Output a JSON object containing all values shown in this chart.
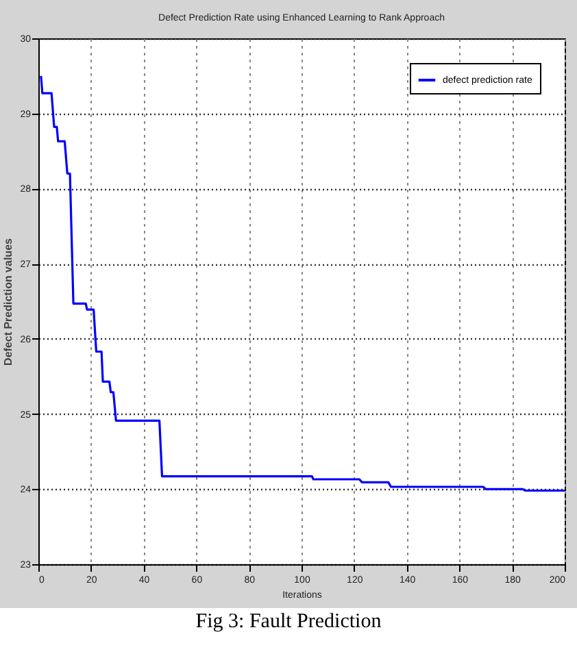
{
  "chart_data": {
    "type": "line",
    "title": "Defect Prediction Rate using Enhanced Learning to Rank Approach",
    "xlabel": "Iterations",
    "ylabel": "Defect Prediction values",
    "annotations": [
      "Fig 3: Fault Prediction"
    ],
    "x": [
      1,
      1.5,
      5,
      6,
      7,
      7.5,
      10,
      11,
      12,
      13.3,
      18,
      18.5,
      21,
      22,
      24,
      24.5,
      27,
      27.5,
      28.5,
      29.5,
      46,
      47,
      104,
      104.5,
      122,
      123,
      133,
      134,
      169,
      170,
      184,
      185,
      200
    ],
    "series": [
      {
        "name": "defect prediction rate",
        "color": "#0000ff",
        "values": [
          29.5,
          29.27,
          29.27,
          28.82,
          28.82,
          28.63,
          28.63,
          28.2,
          28.2,
          26.47,
          26.47,
          26.39,
          26.39,
          25.83,
          25.83,
          25.43,
          25.43,
          25.29,
          25.29,
          24.91,
          24.91,
          24.17,
          24.17,
          24.13,
          24.13,
          24.09,
          24.09,
          24.03,
          24.03,
          24.0,
          24.0,
          23.98,
          23.98
        ]
      }
    ],
    "xlim": [
      0,
      200
    ],
    "xticks": [
      0,
      20,
      40,
      60,
      80,
      100,
      120,
      140,
      160,
      180,
      200
    ],
    "ylim": [
      23,
      30
    ],
    "yticks": [
      23,
      24,
      25,
      26,
      27,
      28,
      29,
      30
    ],
    "grid": true,
    "legend": "top right",
    "marker": "none",
    "line_style": "solid"
  }
}
